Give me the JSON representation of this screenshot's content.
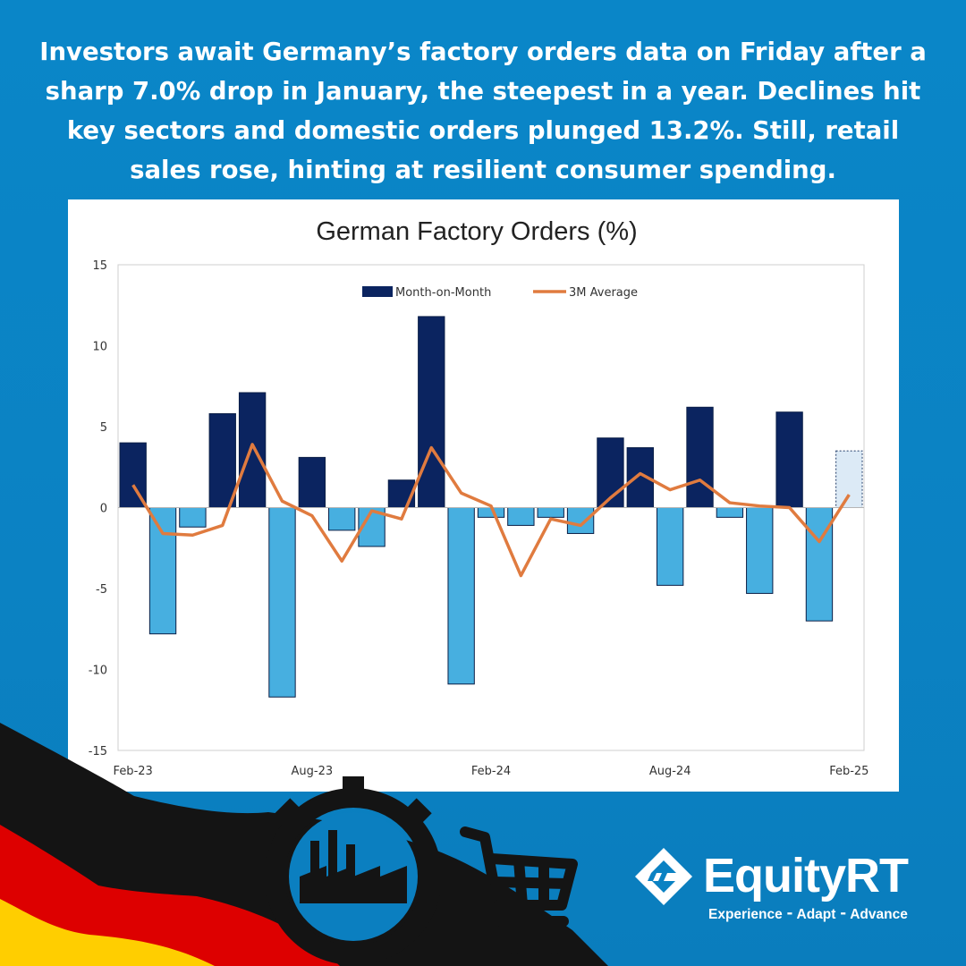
{
  "headline": "Investors await Germany’s factory orders data on Friday after a sharp 7.0% drop in January, the steepest in a year. Declines hit key sectors and domestic orders plunged 13.2%. Still, retail sales rose, hinting at resilient consumer spending.",
  "brand": {
    "name": "EquityRT",
    "tagline": "Experience ⁃ Adapt ⁃ Advance"
  },
  "colors": {
    "background": "#0a86c8",
    "bar_positive": "#0b2460",
    "bar_negative": "#47afe0",
    "bar_forecast": "#dceaf6",
    "line_average": "#e07b3f",
    "flag_black": "#141414",
    "flag_red": "#dd0000",
    "flag_gold": "#ffce00"
  },
  "decorations": [
    "german-flag",
    "factory-gear-icon",
    "shopping-cart-icon"
  ],
  "chart_data": {
    "type": "bar",
    "title": "German Factory Orders (%)",
    "xlabel": "",
    "ylabel": "",
    "ylim": [
      -15,
      15
    ],
    "yticks": [
      "15",
      "10",
      "5",
      "0",
      "-5",
      "-10",
      "-15"
    ],
    "xtick_labels": [
      "Feb-23",
      "Aug-23",
      "Feb-24",
      "Aug-24",
      "Feb-25"
    ],
    "grid": false,
    "legend_position": "top-center",
    "legend": [
      "Month-on-Month",
      "3M Average"
    ],
    "categories": [
      "Feb-23",
      "Mar-23",
      "Apr-23",
      "May-23",
      "Jun-23",
      "Jul-23",
      "Aug-23",
      "Sep-23",
      "Oct-23",
      "Nov-23",
      "Dec-23",
      "Jan-24",
      "Feb-24",
      "Mar-24",
      "Apr-24",
      "May-24",
      "Jun-24",
      "Jul-24",
      "Aug-24",
      "Sep-24",
      "Oct-24",
      "Nov-24",
      "Dec-24",
      "Jan-25",
      "Feb-25"
    ],
    "series": [
      {
        "name": "Month-on-Month",
        "kind": "bar",
        "values": [
          4.0,
          -7.8,
          -1.2,
          5.8,
          7.1,
          -11.7,
          3.1,
          -1.4,
          -2.4,
          1.7,
          11.8,
          -10.9,
          -0.6,
          -1.1,
          -0.6,
          -1.6,
          4.3,
          3.7,
          -4.8,
          6.2,
          -0.6,
          -5.3,
          5.9,
          -7.0,
          3.5
        ],
        "forecast_from": "Feb-25"
      },
      {
        "name": "3M Average",
        "kind": "line",
        "values": [
          1.4,
          -1.6,
          -1.7,
          -1.1,
          3.9,
          0.4,
          -0.5,
          -3.3,
          -0.2,
          -0.7,
          3.7,
          0.9,
          0.1,
          -4.2,
          -0.7,
          -1.1,
          0.6,
          2.1,
          1.1,
          1.7,
          0.3,
          0.1,
          0.0,
          -2.1,
          0.8
        ]
      }
    ]
  }
}
